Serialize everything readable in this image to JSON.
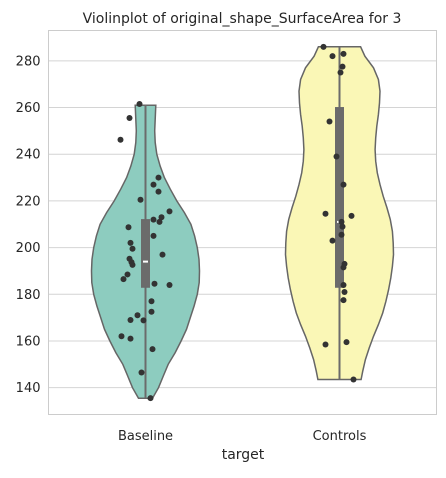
{
  "chart_data": {
    "type": "violin",
    "title": "Violinplot of original_shape_SurfaceArea for 3",
    "xlabel": "target",
    "ylabel": "",
    "categories": [
      "Baseline",
      "Controls"
    ],
    "ylim": [
      128.5,
      293
    ],
    "yticks": [
      140,
      160,
      180,
      200,
      220,
      240,
      260,
      280
    ],
    "grid": true,
    "series": [
      {
        "category": "Baseline",
        "color": "#8dccbf",
        "min": 135.5,
        "max": 261,
        "q1": 183,
        "median": 194,
        "q3": 212,
        "density": [
          [
            135.5,
            0.13
          ],
          [
            140,
            0.24
          ],
          [
            145,
            0.33
          ],
          [
            150,
            0.42
          ],
          [
            155,
            0.55
          ],
          [
            160,
            0.66
          ],
          [
            165,
            0.76
          ],
          [
            170,
            0.83
          ],
          [
            175,
            0.9
          ],
          [
            180,
            0.96
          ],
          [
            185,
            0.995
          ],
          [
            190,
            1.0
          ],
          [
            195,
            0.99
          ],
          [
            200,
            0.96
          ],
          [
            205,
            0.91
          ],
          [
            210,
            0.84
          ],
          [
            215,
            0.72
          ],
          [
            220,
            0.58
          ],
          [
            225,
            0.46
          ],
          [
            230,
            0.35
          ],
          [
            235,
            0.27
          ],
          [
            240,
            0.21
          ],
          [
            245,
            0.18
          ],
          [
            250,
            0.17
          ],
          [
            255,
            0.18
          ],
          [
            261,
            0.19
          ]
        ],
        "points": [
          [
            -0.06,
            261.5
          ],
          [
            -0.16,
            255.5
          ],
          [
            -0.25,
            246.2
          ],
          [
            0.13,
            230
          ],
          [
            0.08,
            227
          ],
          [
            0.13,
            224
          ],
          [
            -0.05,
            220.5
          ],
          [
            0.24,
            215.5
          ],
          [
            0.16,
            213
          ],
          [
            0.08,
            212
          ],
          [
            0.14,
            211
          ],
          [
            -0.17,
            208.7
          ],
          [
            0.08,
            205
          ],
          [
            -0.15,
            202
          ],
          [
            -0.13,
            199.5
          ],
          [
            0.17,
            197
          ],
          [
            -0.16,
            195.2
          ],
          [
            -0.14,
            193.8
          ],
          [
            -0.13,
            192.6
          ],
          [
            -0.18,
            188.5
          ],
          [
            -0.22,
            186.5
          ],
          [
            0.09,
            184.5
          ],
          [
            0.24,
            184
          ],
          [
            0.06,
            177
          ],
          [
            0.06,
            172.5
          ],
          [
            -0.08,
            171
          ],
          [
            -0.15,
            169
          ],
          [
            -0.02,
            168.8
          ],
          [
            -0.24,
            162
          ],
          [
            -0.15,
            161
          ],
          [
            0.07,
            156.5
          ],
          [
            -0.04,
            146.5
          ],
          [
            0.05,
            135.5
          ]
        ]
      },
      {
        "category": "Controls",
        "color": "#faf7b6",
        "min": 143.5,
        "max": 286,
        "q1": 183,
        "median": 211,
        "q3": 260,
        "density": [
          [
            143.5,
            0.4
          ],
          [
            147,
            0.43
          ],
          [
            152,
            0.48
          ],
          [
            157,
            0.55
          ],
          [
            162,
            0.63
          ],
          [
            167,
            0.72
          ],
          [
            172,
            0.8
          ],
          [
            177,
            0.86
          ],
          [
            182,
            0.91
          ],
          [
            187,
            0.95
          ],
          [
            192,
            0.98
          ],
          [
            197,
            1.0
          ],
          [
            202,
            0.995
          ],
          [
            207,
            0.98
          ],
          [
            212,
            0.94
          ],
          [
            217,
            0.88
          ],
          [
            222,
            0.81
          ],
          [
            227,
            0.75
          ],
          [
            232,
            0.7
          ],
          [
            237,
            0.67
          ],
          [
            242,
            0.66
          ],
          [
            247,
            0.67
          ],
          [
            252,
            0.69
          ],
          [
            257,
            0.72
          ],
          [
            262,
            0.74
          ],
          [
            267,
            0.75
          ],
          [
            272,
            0.72
          ],
          [
            277,
            0.63
          ],
          [
            282,
            0.47
          ],
          [
            286,
            0.39
          ]
        ],
        "points": [
          [
            -0.16,
            286
          ],
          [
            -0.07,
            282
          ],
          [
            0.04,
            283
          ],
          [
            0.03,
            277.5
          ],
          [
            0.01,
            275
          ],
          [
            -0.1,
            254
          ],
          [
            -0.03,
            239
          ],
          [
            0.04,
            227
          ],
          [
            -0.14,
            214.5
          ],
          [
            0.12,
            213.6
          ],
          [
            0.02,
            211
          ],
          [
            0.03,
            209
          ],
          [
            0.02,
            205.5
          ],
          [
            -0.07,
            203
          ],
          [
            0.05,
            193
          ],
          [
            0.04,
            191.5
          ],
          [
            0.04,
            184
          ],
          [
            0.05,
            181
          ],
          [
            0.04,
            177.5
          ],
          [
            -0.14,
            158.5
          ],
          [
            0.07,
            159.5
          ],
          [
            0.14,
            143.5
          ]
        ]
      }
    ]
  }
}
